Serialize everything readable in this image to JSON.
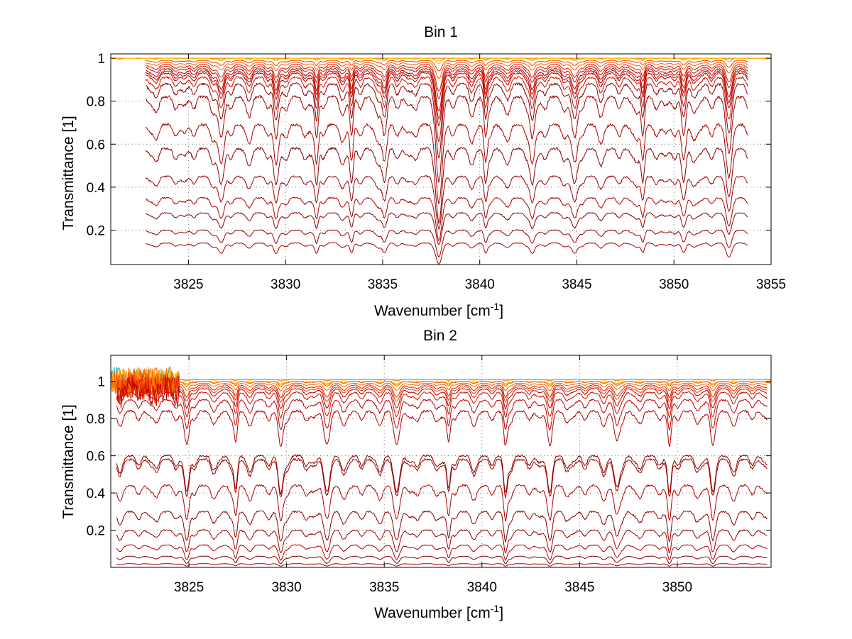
{
  "chart_data": [
    {
      "type": "line",
      "title": "Bin 1",
      "xlabel": "Wavenumber [cm",
      "xlabel_sup": "-1",
      "xlabel_end": "]",
      "ylabel": "Transmittance [1]",
      "xlim": [
        3821,
        3855
      ],
      "ylim": [
        0.04,
        1.02
      ],
      "xticks": [
        3825,
        3830,
        3835,
        3840,
        3845,
        3850,
        3855
      ],
      "yticks": [
        0.2,
        0.4,
        0.6,
        0.8,
        1
      ],
      "xtick_labels": [
        "3825",
        "3830",
        "3835",
        "3840",
        "3845",
        "3850",
        "3855"
      ],
      "ytick_labels": [
        "0.2",
        "0.4",
        "0.6",
        "0.8",
        "1"
      ],
      "grid": true,
      "series_colors": [
        "#8b0000",
        "#a00000",
        "#b00000",
        "#c00000",
        "#d01000",
        "#e02000",
        "#f04000",
        "#ff6000",
        "#ff8000",
        "#ffa000",
        "#ffc000",
        "#3cc8e8"
      ],
      "continuum_levels": [
        1.0,
        1.0,
        1.0,
        1.0,
        0.99,
        0.98,
        0.97,
        0.96,
        0.95,
        0.94,
        0.93,
        0.91,
        0.88,
        0.82,
        0.69,
        0.58,
        0.45,
        0.35,
        0.28,
        0.2,
        0.14
      ],
      "absorption_depths": [
        0.0,
        0.0,
        0.005,
        0.01,
        0.02,
        0.03,
        0.05,
        0.06,
        0.08,
        0.09,
        0.1,
        0.12,
        0.14,
        0.16,
        0.15,
        0.14,
        0.1,
        0.08,
        0.06,
        0.05,
        0.04
      ],
      "x_start": 3822.8,
      "x_end": 3853.8,
      "strong_lines": [
        3831.6,
        3835.1,
        3837.9,
        3840.3,
        3829.5,
        3826.7,
        3833.4,
        3842.7,
        3844.9,
        3848.4,
        3850.5,
        3852.8
      ]
    },
    {
      "type": "line",
      "title": "Bin 2",
      "xlabel": "Wavenumber [cm",
      "xlabel_sup": "-1",
      "xlabel_end": "]",
      "ylabel": "Transmittance [1]",
      "xlim": [
        3821,
        3854.8
      ],
      "ylim": [
        0,
        1.14
      ],
      "xticks": [
        3825,
        3830,
        3835,
        3840,
        3845,
        3850
      ],
      "yticks": [
        0.2,
        0.4,
        0.6,
        0.8,
        1
      ],
      "xtick_labels": [
        "3825",
        "3830",
        "3835",
        "3840",
        "3845",
        "3850"
      ],
      "ytick_labels": [
        "0.2",
        "0.4",
        "0.6",
        "0.8",
        "1"
      ],
      "grid": true,
      "series_colors": [
        "#8b0000",
        "#a00000",
        "#b00000",
        "#c00000",
        "#d01000",
        "#e02000",
        "#f04000",
        "#ff6000",
        "#ff8000",
        "#ffa000",
        "#ffc000",
        "#3cc8e8"
      ],
      "continuum_levels": [
        1.01,
        1.01,
        1.0,
        1.0,
        1.0,
        0.99,
        0.98,
        0.97,
        0.96,
        0.94,
        0.9,
        0.84,
        0.6,
        0.58,
        0.44,
        0.3,
        0.2,
        0.12,
        0.06,
        0.02
      ],
      "absorption_depths": [
        0.0,
        0.005,
        0.01,
        0.015,
        0.02,
        0.03,
        0.05,
        0.06,
        0.08,
        0.1,
        0.12,
        0.14,
        0.15,
        0.15,
        0.14,
        0.12,
        0.09,
        0.06,
        0.03,
        0.01
      ],
      "x_start": 3821.3,
      "x_end": 3854.6,
      "strong_lines": [
        3838.3,
        3829.7,
        3832.1,
        3827.4,
        3843.5,
        3846.9,
        3849.6,
        3851.8,
        3835.6,
        3841.2,
        3824.9
      ]
    }
  ]
}
